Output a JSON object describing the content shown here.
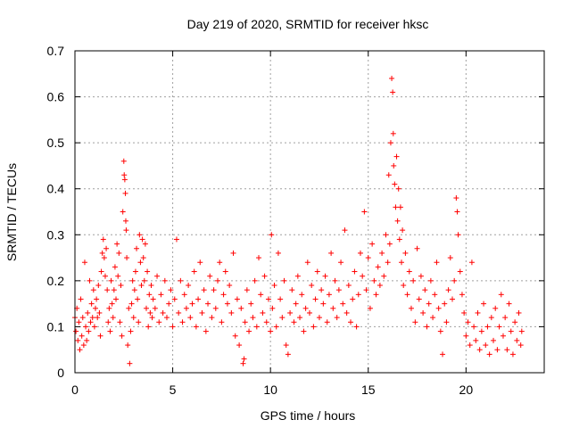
{
  "chart_data": {
    "type": "scatter",
    "title": "Day 219 of 2020, SRMTID for receiver hksc",
    "xlabel": "GPS time / hours",
    "ylabel": "SRMTID / TECUs",
    "xlim": [
      0,
      24
    ],
    "ylim": [
      0,
      0.7
    ],
    "xticks": [
      0,
      5,
      10,
      15,
      20
    ],
    "xtick_labels": [
      "0",
      "5",
      "10",
      "15",
      "20"
    ],
    "yticks": [
      0,
      0.1,
      0.2,
      0.3,
      0.4,
      0.5,
      0.6,
      0.7
    ],
    "ytick_labels": [
      "0",
      "0.1",
      "0.2",
      "0.3",
      "0.4",
      "0.5",
      "0.6",
      "0.7"
    ],
    "grid": true,
    "marker": "+",
    "color": "#ff0000",
    "series": [
      {
        "name": "SRMTID",
        "points": [
          [
            0.0,
            0.12
          ],
          [
            0.05,
            0.09
          ],
          [
            0.1,
            0.14
          ],
          [
            0.15,
            0.07
          ],
          [
            0.2,
            0.11
          ],
          [
            0.25,
            0.05
          ],
          [
            0.3,
            0.16
          ],
          [
            0.35,
            0.08
          ],
          [
            0.4,
            0.12
          ],
          [
            0.45,
            0.06
          ],
          [
            0.5,
            0.24
          ],
          [
            0.55,
            0.1
          ],
          [
            0.6,
            0.07
          ],
          [
            0.65,
            0.13
          ],
          [
            0.7,
            0.09
          ],
          [
            0.75,
            0.2
          ],
          [
            0.8,
            0.11
          ],
          [
            0.85,
            0.15
          ],
          [
            0.9,
            0.12
          ],
          [
            0.95,
            0.18
          ],
          [
            1.0,
            0.1
          ],
          [
            1.05,
            0.14
          ],
          [
            1.1,
            0.16
          ],
          [
            1.15,
            0.12
          ],
          [
            1.2,
            0.19
          ],
          [
            1.25,
            0.13
          ],
          [
            1.3,
            0.08
          ],
          [
            1.35,
            0.22
          ],
          [
            1.4,
            0.26
          ],
          [
            1.45,
            0.29
          ],
          [
            1.5,
            0.25
          ],
          [
            1.55,
            0.21
          ],
          [
            1.6,
            0.27
          ],
          [
            1.65,
            0.18
          ],
          [
            1.7,
            0.11
          ],
          [
            1.75,
            0.14
          ],
          [
            1.8,
            0.09
          ],
          [
            1.85,
            0.2
          ],
          [
            1.9,
            0.15
          ],
          [
            1.95,
            0.12
          ],
          [
            2.0,
            0.18
          ],
          [
            2.05,
            0.23
          ],
          [
            2.1,
            0.16
          ],
          [
            2.15,
            0.28
          ],
          [
            2.2,
            0.21
          ],
          [
            2.25,
            0.26
          ],
          [
            2.3,
            0.11
          ],
          [
            2.35,
            0.19
          ],
          [
            2.4,
            0.08
          ],
          [
            2.45,
            0.35
          ],
          [
            2.5,
            0.46
          ],
          [
            2.52,
            0.43
          ],
          [
            2.55,
            0.42
          ],
          [
            2.58,
            0.39
          ],
          [
            2.6,
            0.33
          ],
          [
            2.62,
            0.31
          ],
          [
            2.65,
            0.25
          ],
          [
            2.7,
            0.06
          ],
          [
            2.75,
            0.14
          ],
          [
            2.8,
            0.02
          ],
          [
            2.85,
            0.09
          ],
          [
            2.9,
            0.15
          ],
          [
            2.95,
            0.2
          ],
          [
            3.0,
            0.12
          ],
          [
            3.05,
            0.18
          ],
          [
            3.1,
            0.22
          ],
          [
            3.15,
            0.27
          ],
          [
            3.2,
            0.16
          ],
          [
            3.25,
            0.11
          ],
          [
            3.3,
            0.3
          ],
          [
            3.35,
            0.24
          ],
          [
            3.4,
            0.19
          ],
          [
            3.45,
            0.29
          ],
          [
            3.5,
            0.25
          ],
          [
            3.55,
            0.2
          ],
          [
            3.6,
            0.28
          ],
          [
            3.65,
            0.14
          ],
          [
            3.7,
            0.22
          ],
          [
            3.75,
            0.1
          ],
          [
            3.8,
            0.17
          ],
          [
            3.85,
            0.13
          ],
          [
            3.9,
            0.19
          ],
          [
            3.95,
            0.12
          ],
          [
            4.0,
            0.16
          ],
          [
            4.1,
            0.14
          ],
          [
            4.2,
            0.21
          ],
          [
            4.3,
            0.11
          ],
          [
            4.4,
            0.17
          ],
          [
            4.5,
            0.13
          ],
          [
            4.6,
            0.2
          ],
          [
            4.7,
            0.12
          ],
          [
            4.8,
            0.15
          ],
          [
            4.9,
            0.18
          ],
          [
            5.0,
            0.1
          ],
          [
            5.1,
            0.16
          ],
          [
            5.2,
            0.29
          ],
          [
            5.3,
            0.13
          ],
          [
            5.4,
            0.2
          ],
          [
            5.5,
            0.11
          ],
          [
            5.6,
            0.17
          ],
          [
            5.7,
            0.14
          ],
          [
            5.8,
            0.19
          ],
          [
            5.9,
            0.12
          ],
          [
            6.0,
            0.15
          ],
          [
            6.1,
            0.22
          ],
          [
            6.2,
            0.1
          ],
          [
            6.3,
            0.16
          ],
          [
            6.4,
            0.24
          ],
          [
            6.5,
            0.13
          ],
          [
            6.6,
            0.18
          ],
          [
            6.7,
            0.09
          ],
          [
            6.8,
            0.15
          ],
          [
            6.9,
            0.21
          ],
          [
            7.0,
            0.12
          ],
          [
            7.1,
            0.18
          ],
          [
            7.2,
            0.14
          ],
          [
            7.3,
            0.2
          ],
          [
            7.4,
            0.24
          ],
          [
            7.5,
            0.11
          ],
          [
            7.6,
            0.17
          ],
          [
            7.7,
            0.22
          ],
          [
            7.8,
            0.15
          ],
          [
            7.9,
            0.19
          ],
          [
            8.0,
            0.13
          ],
          [
            8.1,
            0.26
          ],
          [
            8.2,
            0.08
          ],
          [
            8.3,
            0.16
          ],
          [
            8.4,
            0.06
          ],
          [
            8.5,
            0.14
          ],
          [
            8.6,
            0.02
          ],
          [
            8.65,
            0.03
          ],
          [
            8.7,
            0.11
          ],
          [
            8.8,
            0.18
          ],
          [
            8.9,
            0.09
          ],
          [
            9.0,
            0.15
          ],
          [
            9.1,
            0.12
          ],
          [
            9.2,
            0.2
          ],
          [
            9.3,
            0.1
          ],
          [
            9.4,
            0.25
          ],
          [
            9.5,
            0.17
          ],
          [
            9.6,
            0.13
          ],
          [
            9.7,
            0.21
          ],
          [
            9.8,
            0.11
          ],
          [
            9.9,
            0.16
          ],
          [
            10.0,
            0.09
          ],
          [
            10.05,
            0.3
          ],
          [
            10.1,
            0.14
          ],
          [
            10.2,
            0.19
          ],
          [
            10.3,
            0.1
          ],
          [
            10.4,
            0.26
          ],
          [
            10.5,
            0.16
          ],
          [
            10.6,
            0.12
          ],
          [
            10.7,
            0.2
          ],
          [
            10.8,
            0.06
          ],
          [
            10.9,
            0.04
          ],
          [
            11.0,
            0.13
          ],
          [
            11.1,
            0.18
          ],
          [
            11.2,
            0.11
          ],
          [
            11.3,
            0.15
          ],
          [
            11.4,
            0.21
          ],
          [
            11.5,
            0.12
          ],
          [
            11.6,
            0.17
          ],
          [
            11.7,
            0.09
          ],
          [
            11.8,
            0.14
          ],
          [
            11.9,
            0.24
          ],
          [
            12.0,
            0.13
          ],
          [
            12.1,
            0.19
          ],
          [
            12.2,
            0.1
          ],
          [
            12.3,
            0.16
          ],
          [
            12.4,
            0.22
          ],
          [
            12.5,
            0.12
          ],
          [
            12.6,
            0.18
          ],
          [
            12.7,
            0.15
          ],
          [
            12.8,
            0.21
          ],
          [
            12.9,
            0.11
          ],
          [
            13.0,
            0.17
          ],
          [
            13.1,
            0.26
          ],
          [
            13.2,
            0.14
          ],
          [
            13.3,
            0.2
          ],
          [
            13.4,
            0.12
          ],
          [
            13.5,
            0.18
          ],
          [
            13.6,
            0.24
          ],
          [
            13.7,
            0.15
          ],
          [
            13.8,
            0.31
          ],
          [
            13.9,
            0.13
          ],
          [
            14.0,
            0.19
          ],
          [
            14.1,
            0.11
          ],
          [
            14.2,
            0.16
          ],
          [
            14.3,
            0.22
          ],
          [
            14.4,
            0.1
          ],
          [
            14.5,
            0.17
          ],
          [
            14.6,
            0.26
          ],
          [
            14.7,
            0.21
          ],
          [
            14.8,
            0.35
          ],
          [
            14.9,
            0.18
          ],
          [
            15.0,
            0.25
          ],
          [
            15.1,
            0.14
          ],
          [
            15.2,
            0.28
          ],
          [
            15.3,
            0.2
          ],
          [
            15.4,
            0.17
          ],
          [
            15.5,
            0.23
          ],
          [
            15.6,
            0.19
          ],
          [
            15.7,
            0.26
          ],
          [
            15.8,
            0.21
          ],
          [
            15.9,
            0.3
          ],
          [
            16.0,
            0.24
          ],
          [
            16.05,
            0.43
          ],
          [
            16.1,
            0.28
          ],
          [
            16.15,
            0.5
          ],
          [
            16.2,
            0.64
          ],
          [
            16.25,
            0.61
          ],
          [
            16.28,
            0.52
          ],
          [
            16.3,
            0.45
          ],
          [
            16.35,
            0.41
          ],
          [
            16.4,
            0.36
          ],
          [
            16.45,
            0.47
          ],
          [
            16.5,
            0.33
          ],
          [
            16.55,
            0.4
          ],
          [
            16.6,
            0.29
          ],
          [
            16.65,
            0.36
          ],
          [
            16.7,
            0.24
          ],
          [
            16.75,
            0.31
          ],
          [
            16.8,
            0.19
          ],
          [
            16.9,
            0.26
          ],
          [
            17.0,
            0.17
          ],
          [
            17.1,
            0.22
          ],
          [
            17.2,
            0.14
          ],
          [
            17.3,
            0.2
          ],
          [
            17.4,
            0.11
          ],
          [
            17.5,
            0.27
          ],
          [
            17.6,
            0.16
          ],
          [
            17.7,
            0.21
          ],
          [
            17.8,
            0.13
          ],
          [
            17.9,
            0.18
          ],
          [
            18.0,
            0.1
          ],
          [
            18.1,
            0.15
          ],
          [
            18.2,
            0.2
          ],
          [
            18.3,
            0.12
          ],
          [
            18.4,
            0.17
          ],
          [
            18.5,
            0.24
          ],
          [
            18.6,
            0.14
          ],
          [
            18.7,
            0.09
          ],
          [
            18.8,
            0.04
          ],
          [
            18.9,
            0.15
          ],
          [
            19.0,
            0.11
          ],
          [
            19.1,
            0.18
          ],
          [
            19.2,
            0.25
          ],
          [
            19.3,
            0.16
          ],
          [
            19.4,
            0.2
          ],
          [
            19.5,
            0.38
          ],
          [
            19.55,
            0.35
          ],
          [
            19.6,
            0.3
          ],
          [
            19.7,
            0.22
          ],
          [
            19.8,
            0.17
          ],
          [
            19.9,
            0.13
          ],
          [
            20.0,
            0.08
          ],
          [
            20.1,
            0.11
          ],
          [
            20.2,
            0.06
          ],
          [
            20.3,
            0.24
          ],
          [
            20.4,
            0.1
          ],
          [
            20.5,
            0.07
          ],
          [
            20.6,
            0.13
          ],
          [
            20.7,
            0.05
          ],
          [
            20.8,
            0.09
          ],
          [
            20.9,
            0.15
          ],
          [
            21.0,
            0.06
          ],
          [
            21.1,
            0.1
          ],
          [
            21.2,
            0.04
          ],
          [
            21.3,
            0.12
          ],
          [
            21.4,
            0.07
          ],
          [
            21.5,
            0.14
          ],
          [
            21.6,
            0.05
          ],
          [
            21.7,
            0.1
          ],
          [
            21.8,
            0.17
          ],
          [
            21.9,
            0.08
          ],
          [
            22.0,
            0.12
          ],
          [
            22.1,
            0.05
          ],
          [
            22.2,
            0.15
          ],
          [
            22.3,
            0.09
          ],
          [
            22.4,
            0.04
          ],
          [
            22.5,
            0.11
          ],
          [
            22.6,
            0.07
          ],
          [
            22.7,
            0.13
          ],
          [
            22.8,
            0.06
          ],
          [
            22.85,
            0.09
          ]
        ]
      }
    ]
  }
}
